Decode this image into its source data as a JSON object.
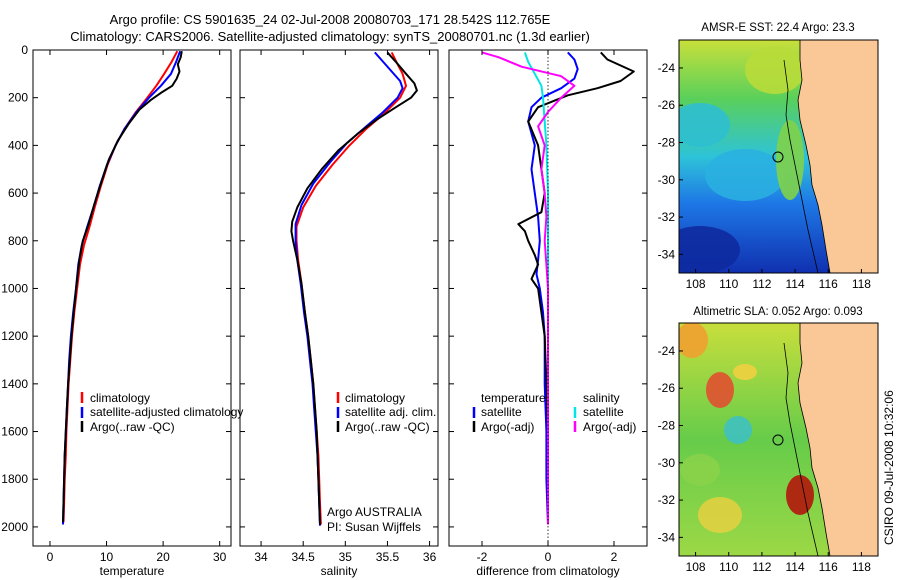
{
  "chart_data": [
    {
      "type": "line",
      "panel": "temperature",
      "title_lines": [
        "Argo profile: CS 5901635_24 02-Jul-2008 20080703_171 28.542S 112.765E",
        "Climatology: CARS2006. Satellite-adjusted climatology: synTS_20080701.nc (1.3d earlier)"
      ],
      "xlabel": "temperature",
      "xlim": [
        -3,
        32
      ],
      "xticks": [
        0,
        10,
        20,
        30
      ],
      "ylim": [
        2080,
        0
      ],
      "yticks": [
        0,
        200,
        400,
        600,
        800,
        1000,
        1200,
        1400,
        1600,
        1800,
        2000
      ],
      "legend": [
        "climatology",
        "satellite-adjusted climatology",
        "Argo(..raw -QC)"
      ],
      "series": [
        {
          "name": "climatology",
          "color": "#ff0000",
          "points": [
            [
              22.5,
              5
            ],
            [
              21.5,
              50
            ],
            [
              20.2,
              100
            ],
            [
              18.8,
              150
            ],
            [
              17.2,
              200
            ],
            [
              15.2,
              260
            ],
            [
              13.2,
              330
            ],
            [
              11.6,
              400
            ],
            [
              10.2,
              480
            ],
            [
              9.0,
              570
            ],
            [
              7.9,
              660
            ],
            [
              7.0,
              740
            ],
            [
              6.0,
              820
            ],
            [
              5.3,
              900
            ],
            [
              4.8,
              1000
            ],
            [
              4.3,
              1100
            ],
            [
              3.9,
              1200
            ],
            [
              3.6,
              1300
            ],
            [
              3.3,
              1400
            ],
            [
              3.1,
              1500
            ],
            [
              2.9,
              1600
            ],
            [
              2.8,
              1700
            ],
            [
              2.6,
              1800
            ],
            [
              2.5,
              1900
            ],
            [
              2.4,
              1980
            ]
          ]
        },
        {
          "name": "satellite-adjusted climatology",
          "color": "#0000ff",
          "points": [
            [
              23.0,
              5
            ],
            [
              22.3,
              50
            ],
            [
              21.4,
              100
            ],
            [
              19.6,
              150
            ],
            [
              17.5,
              200
            ],
            [
              15.3,
              260
            ],
            [
              13.2,
              330
            ],
            [
              11.6,
              400
            ],
            [
              10.1,
              480
            ],
            [
              8.8,
              570
            ],
            [
              7.7,
              660
            ],
            [
              6.6,
              740
            ],
            [
              5.6,
              820
            ],
            [
              5.0,
              900
            ],
            [
              4.6,
              1000
            ],
            [
              4.1,
              1100
            ],
            [
              3.7,
              1200
            ],
            [
              3.4,
              1300
            ],
            [
              3.2,
              1400
            ],
            [
              3.0,
              1500
            ],
            [
              2.8,
              1600
            ],
            [
              2.6,
              1700
            ],
            [
              2.5,
              1800
            ],
            [
              2.4,
              1900
            ],
            [
              2.3,
              1990
            ]
          ]
        },
        {
          "name": "Argo(..raw -QC)",
          "color": "#000000",
          "points": [
            [
              23.3,
              5
            ],
            [
              23.1,
              30
            ],
            [
              22.6,
              60
            ],
            [
              22.9,
              90
            ],
            [
              22.4,
              120
            ],
            [
              21.6,
              150
            ],
            [
              19.6,
              180
            ],
            [
              17.8,
              210
            ],
            [
              15.8,
              250
            ],
            [
              13.9,
              310
            ],
            [
              12.0,
              380
            ],
            [
              10.4,
              460
            ],
            [
              9.0,
              560
            ],
            [
              7.8,
              650
            ],
            [
              6.7,
              740
            ],
            [
              5.8,
              800
            ],
            [
              5.2,
              880
            ],
            [
              4.7,
              980
            ],
            [
              4.2,
              1100
            ],
            [
              3.8,
              1200
            ],
            [
              3.5,
              1300
            ],
            [
              3.2,
              1400
            ],
            [
              3.0,
              1500
            ],
            [
              2.8,
              1600
            ],
            [
              2.6,
              1700
            ],
            [
              2.5,
              1800
            ],
            [
              2.4,
              1900
            ],
            [
              2.3,
              1980
            ]
          ]
        }
      ]
    },
    {
      "type": "line",
      "panel": "salinity",
      "xlabel": "salinity",
      "xlim": [
        33.75,
        36.1
      ],
      "xticks": [
        34,
        34.5,
        35,
        35.5,
        36
      ],
      "ylim": [
        2080,
        0
      ],
      "legend": [
        "climatology",
        "satellite adj. clim.",
        "Argo(..raw -QC)"
      ],
      "annotation_lines": [
        "Argo AUSTRALIA",
        "PI: Susan Wijffels"
      ],
      "series": [
        {
          "name": "climatology",
          "color": "#ff0000",
          "points": [
            [
              35.55,
              10
            ],
            [
              35.62,
              60
            ],
            [
              35.68,
              100
            ],
            [
              35.72,
              150
            ],
            [
              35.65,
              200
            ],
            [
              35.45,
              270
            ],
            [
              35.25,
              330
            ],
            [
              35.05,
              400
            ],
            [
              34.85,
              480
            ],
            [
              34.65,
              570
            ],
            [
              34.5,
              660
            ],
            [
              34.42,
              740
            ],
            [
              34.42,
              800
            ],
            [
              34.44,
              880
            ],
            [
              34.48,
              980
            ],
            [
              34.52,
              1100
            ],
            [
              34.56,
              1200
            ],
            [
              34.59,
              1300
            ],
            [
              34.62,
              1400
            ],
            [
              34.64,
              1500
            ],
            [
              34.66,
              1600
            ],
            [
              34.68,
              1700
            ],
            [
              34.69,
              1800
            ],
            [
              34.7,
              1900
            ],
            [
              34.71,
              1990
            ]
          ]
        },
        {
          "name": "satellite adj. clim.",
          "color": "#0000ff",
          "points": [
            [
              35.35,
              10
            ],
            [
              35.45,
              50
            ],
            [
              35.55,
              90
            ],
            [
              35.65,
              130
            ],
            [
              35.68,
              160
            ],
            [
              35.62,
              200
            ],
            [
              35.45,
              260
            ],
            [
              35.25,
              320
            ],
            [
              35.02,
              390
            ],
            [
              34.82,
              470
            ],
            [
              34.62,
              560
            ],
            [
              34.48,
              650
            ],
            [
              34.41,
              730
            ],
            [
              34.41,
              800
            ],
            [
              34.43,
              880
            ],
            [
              34.47,
              980
            ],
            [
              34.51,
              1100
            ],
            [
              34.55,
              1200
            ],
            [
              34.58,
              1300
            ],
            [
              34.61,
              1400
            ],
            [
              34.63,
              1500
            ],
            [
              34.65,
              1600
            ],
            [
              34.67,
              1700
            ],
            [
              34.68,
              1800
            ],
            [
              34.69,
              1900
            ],
            [
              34.7,
              1995
            ]
          ]
        },
        {
          "name": "Argo(..raw -QC)",
          "color": "#000000",
          "points": [
            [
              35.5,
              10
            ],
            [
              35.6,
              50
            ],
            [
              35.72,
              100
            ],
            [
              35.82,
              140
            ],
            [
              35.85,
              170
            ],
            [
              35.78,
              200
            ],
            [
              35.6,
              240
            ],
            [
              35.38,
              290
            ],
            [
              35.15,
              350
            ],
            [
              34.92,
              420
            ],
            [
              34.72,
              500
            ],
            [
              34.55,
              580
            ],
            [
              34.43,
              660
            ],
            [
              34.37,
              720
            ],
            [
              34.36,
              760
            ],
            [
              34.38,
              800
            ],
            [
              34.43,
              880
            ],
            [
              34.48,
              980
            ],
            [
              34.52,
              1100
            ],
            [
              34.56,
              1200
            ],
            [
              34.59,
              1300
            ],
            [
              34.62,
              1400
            ],
            [
              34.64,
              1500
            ],
            [
              34.66,
              1600
            ],
            [
              34.67,
              1700
            ],
            [
              34.68,
              1800
            ],
            [
              34.69,
              1900
            ],
            [
              34.7,
              1990
            ]
          ]
        }
      ]
    },
    {
      "type": "line",
      "panel": "difference",
      "xlabel": "difference from climatology",
      "xlim": [
        -3,
        3
      ],
      "xticks": [
        -2,
        0,
        2
      ],
      "ylim": [
        2080,
        0
      ],
      "legend_headers": [
        "temperature",
        "salinity"
      ],
      "legend": [
        "satellite",
        "Argo(-adj)",
        "satellite",
        "Argo(-adj)"
      ],
      "series": [
        {
          "name": "temperature satellite",
          "color": "#0000ff",
          "points": [
            [
              0.6,
              10
            ],
            [
              0.8,
              40
            ],
            [
              0.9,
              80
            ],
            [
              0.8,
              120
            ],
            [
              0.4,
              160
            ],
            [
              -0.2,
              200
            ],
            [
              -0.5,
              240
            ],
            [
              -0.6,
              300
            ],
            [
              -0.4,
              400
            ],
            [
              -0.5,
              500
            ],
            [
              -0.4,
              600
            ],
            [
              -0.3,
              700
            ],
            [
              -0.25,
              800
            ],
            [
              -0.3,
              880
            ],
            [
              -0.35,
              940
            ],
            [
              -0.25,
              1000
            ],
            [
              -0.15,
              1100
            ],
            [
              -0.1,
              1200
            ],
            [
              -0.1,
              1400
            ],
            [
              -0.05,
              1600
            ],
            [
              -0.05,
              1800
            ],
            [
              0,
              1990
            ]
          ]
        },
        {
          "name": "temperature Argo(-adj)",
          "color": "#000000",
          "points": [
            [
              1.6,
              10
            ],
            [
              1.8,
              40
            ],
            [
              2.6,
              90
            ],
            [
              2.2,
              130
            ],
            [
              1.5,
              160
            ],
            [
              0.6,
              190
            ],
            [
              -0.3,
              240
            ],
            [
              -0.6,
              300
            ],
            [
              -0.3,
              400
            ],
            [
              -0.2,
              500
            ],
            [
              -0.1,
              600
            ],
            [
              -0.2,
              680
            ],
            [
              -0.9,
              730
            ],
            [
              -0.7,
              760
            ],
            [
              -0.6,
              800
            ],
            [
              -0.4,
              860
            ],
            [
              -0.3,
              900
            ],
            [
              -0.5,
              960
            ],
            [
              -0.3,
              1000
            ],
            [
              -0.2,
              1100
            ],
            [
              -0.1,
              1200
            ],
            [
              -0.05,
              1400
            ],
            [
              0,
              1600
            ],
            [
              0,
              1800
            ],
            [
              0,
              1990
            ]
          ]
        },
        {
          "name": "salinity satellite",
          "color": "#00e5e5",
          "points": [
            [
              -0.7,
              10
            ],
            [
              -0.6,
              50
            ],
            [
              -0.4,
              100
            ],
            [
              -0.2,
              150
            ],
            [
              -0.15,
              200
            ],
            [
              -0.1,
              300
            ],
            [
              -0.05,
              400
            ],
            [
              0,
              600
            ],
            [
              0,
              1000
            ],
            [
              0,
              1990
            ]
          ]
        },
        {
          "name": "salinity Argo(-adj)",
          "color": "#ff00ff",
          "points": [
            [
              -2.0,
              10
            ],
            [
              -1.5,
              30
            ],
            [
              -0.8,
              70
            ],
            [
              0.4,
              110
            ],
            [
              0.8,
              150
            ],
            [
              0.4,
              200
            ],
            [
              0,
              260
            ],
            [
              -0.3,
              320
            ],
            [
              -0.1,
              400
            ],
            [
              -0.2,
              500
            ],
            [
              -0.1,
              600
            ],
            [
              -0.05,
              700
            ],
            [
              -0.1,
              800
            ],
            [
              -0.05,
              900
            ],
            [
              0,
              1000
            ],
            [
              0,
              1990
            ]
          ]
        }
      ]
    },
    {
      "type": "heatmap",
      "panel": "map-sst",
      "title": "AMSR-E SST: 22.4 Argo: 23.3",
      "xticks": [
        108,
        110,
        112,
        114,
        116,
        118
      ],
      "yticks": [
        -24,
        -26,
        -28,
        -30,
        -32,
        -34
      ],
      "xlim": [
        107,
        119
      ],
      "ylim": [
        -35,
        -22.5
      ],
      "argo_position": [
        112.765,
        -28.542
      ]
    },
    {
      "type": "heatmap",
      "panel": "map-sla",
      "title": "Altimetric SLA: 0.052 Argo: 0.093",
      "xticks": [
        108,
        110,
        112,
        114,
        116,
        118
      ],
      "yticks": [
        -24,
        -26,
        -28,
        -30,
        -32,
        -34
      ],
      "xlim": [
        107,
        119
      ],
      "ylim": [
        -35,
        -22.5
      ],
      "argo_position": [
        112.765,
        -28.542
      ]
    }
  ],
  "credit": "CSIRO 09-Jul-2008 10:32:06"
}
